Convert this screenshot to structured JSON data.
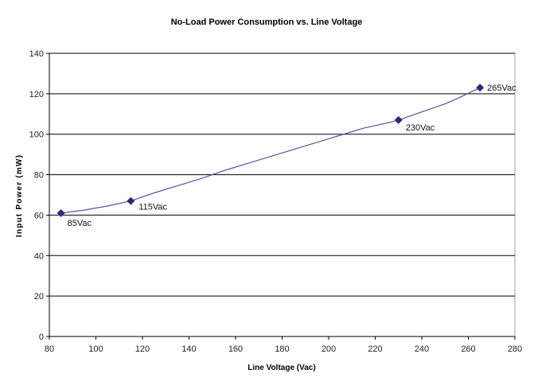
{
  "chart_data": {
    "type": "line",
    "title": "No-Load Power Consumption vs. Line Voltage",
    "xlabel": "Line Voltage (Vac)",
    "ylabel": "Input Power (mW)",
    "xlim": [
      80,
      280
    ],
    "ylim": [
      0,
      140
    ],
    "x_ticks": [
      80,
      100,
      120,
      140,
      160,
      180,
      200,
      220,
      240,
      260,
      280
    ],
    "y_ticks": [
      0,
      20,
      40,
      60,
      80,
      100,
      120,
      140
    ],
    "grid": {
      "horizontal": true,
      "vertical": false
    },
    "legend": null,
    "series": [
      {
        "name": "Input Power",
        "color": "#5b4fa8",
        "marker_color": "#2e2a7a",
        "x": [
          85,
          95,
          100,
          105,
          115,
          125,
          135,
          145,
          155,
          165,
          175,
          185,
          195,
          205,
          215,
          225,
          230,
          240,
          250,
          255,
          265
        ],
        "values": [
          61,
          62.5,
          63.5,
          64.5,
          67,
          71,
          74.5,
          78,
          82,
          85.5,
          89,
          92.5,
          96,
          99.5,
          103,
          105.5,
          107,
          111,
          115,
          117.5,
          123
        ]
      }
    ],
    "annotated_points": [
      {
        "x": 85,
        "y": 61,
        "label": "85Vac"
      },
      {
        "x": 115,
        "y": 67,
        "label": "115Vac"
      },
      {
        "x": 230,
        "y": 107,
        "label": "230Vac"
      },
      {
        "x": 265,
        "y": 123,
        "label": "265Vac"
      }
    ]
  }
}
